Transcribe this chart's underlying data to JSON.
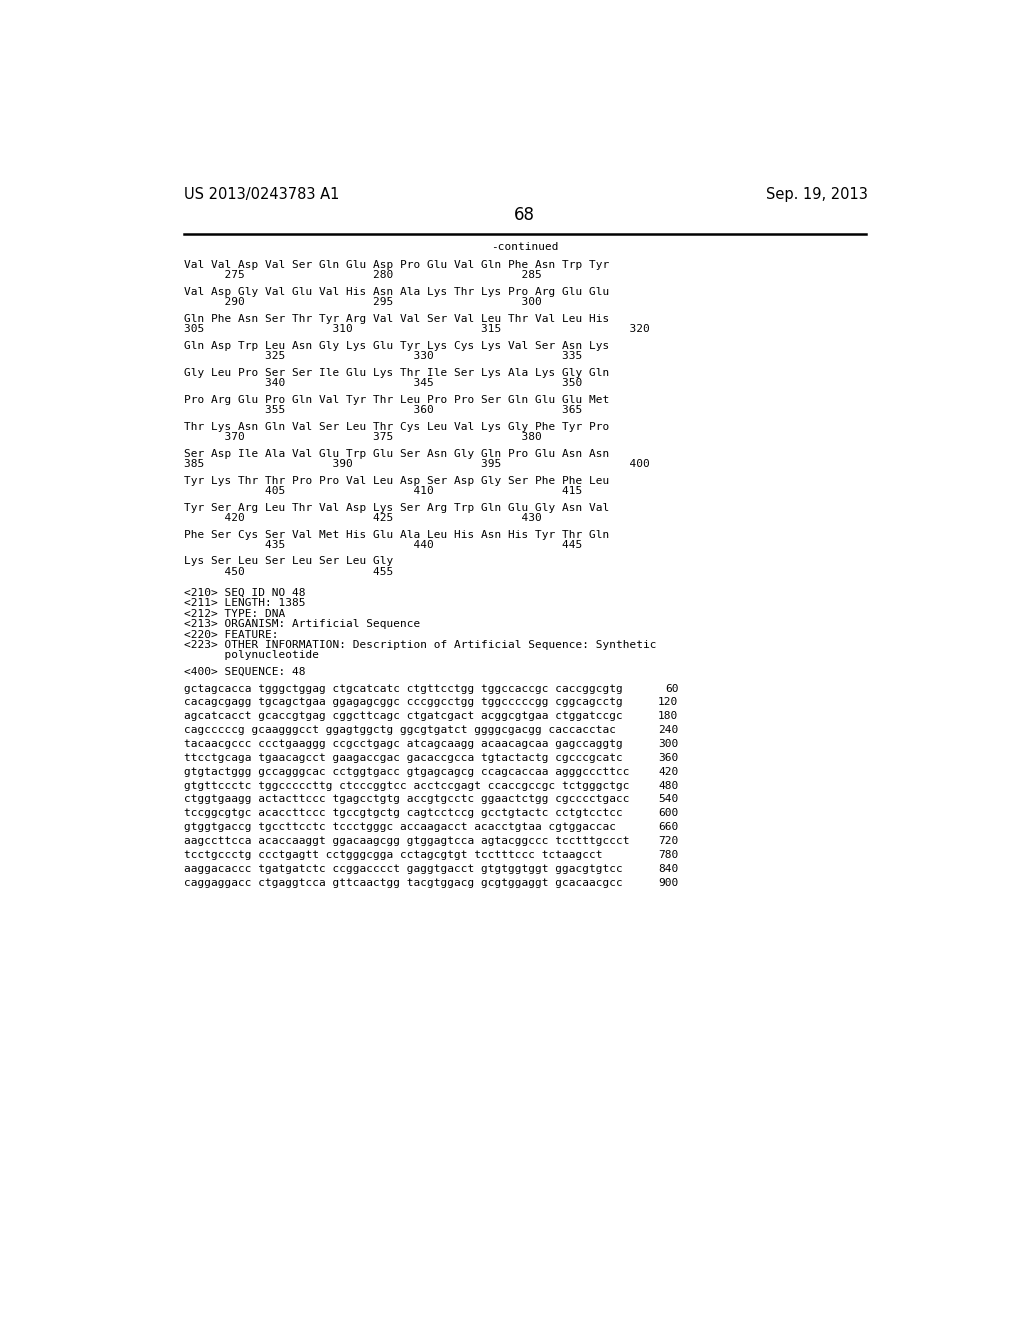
{
  "header_left": "US 2013/0243783 A1",
  "header_right": "Sep. 19, 2013",
  "page_number": "68",
  "continued_text": "-continued",
  "background_color": "#ffffff",
  "text_color": "#000000",
  "font_size_header": 10.5,
  "font_size_page": 12,
  "mono_fs": 8.0,
  "sequence_blocks": [
    [
      "Val Val Asp Val Ser Gln Glu Asp Pro Glu Val Gln Phe Asn Trp Tyr",
      "      275                   280                   285"
    ],
    [
      "Val Asp Gly Val Glu Val His Asn Ala Lys Thr Lys Pro Arg Glu Glu",
      "      290                   295                   300"
    ],
    [
      "Gln Phe Asn Ser Thr Tyr Arg Val Val Ser Val Leu Thr Val Leu His",
      "305                   310                   315                   320"
    ],
    [
      "Gln Asp Trp Leu Asn Gly Lys Glu Tyr Lys Cys Lys Val Ser Asn Lys",
      "            325                   330                   335"
    ],
    [
      "Gly Leu Pro Ser Ser Ile Glu Lys Thr Ile Ser Lys Ala Lys Gly Gln",
      "            340                   345                   350"
    ],
    [
      "Pro Arg Glu Pro Gln Val Tyr Thr Leu Pro Pro Ser Gln Glu Glu Met",
      "            355                   360                   365"
    ],
    [
      "Thr Lys Asn Gln Val Ser Leu Thr Cys Leu Val Lys Gly Phe Tyr Pro",
      "      370                   375                   380"
    ],
    [
      "Ser Asp Ile Ala Val Glu Trp Glu Ser Asn Gly Gln Pro Glu Asn Asn",
      "385                   390                   395                   400"
    ],
    [
      "Tyr Lys Thr Thr Pro Pro Val Leu Asp Ser Asp Gly Ser Phe Phe Leu",
      "            405                   410                   415"
    ],
    [
      "Tyr Ser Arg Leu Thr Val Asp Lys Ser Arg Trp Gln Glu Gly Asn Val",
      "      420                   425                   430"
    ],
    [
      "Phe Ser Cys Ser Val Met His Glu Ala Leu His Asn His Tyr Thr Gln",
      "            435                   440                   445"
    ],
    [
      "Lys Ser Leu Ser Leu Ser Leu Gly",
      "      450                   455"
    ]
  ],
  "metadata_lines": [
    "<210> SEQ ID NO 48",
    "<211> LENGTH: 1385",
    "<212> TYPE: DNA",
    "<213> ORGANISM: Artificial Sequence",
    "<220> FEATURE:",
    "<223> OTHER INFORMATION: Description of Artificial Sequence: Synthetic",
    "      polynucleotide"
  ],
  "sequence400_header": "<400> SEQUENCE: 48",
  "dna_lines": [
    [
      "gctagcacca tgggctggag ctgcatcatc ctgttcctgg tggccaccgc caccggcgtg",
      "60"
    ],
    [
      "cacagcgagg tgcagctgaa ggagagcggc cccggcctgg tggcccccgg cggcagcctg",
      "120"
    ],
    [
      "agcatcacct gcaccgtgag cggcttcagc ctgatcgact acggcgtgaa ctggatccgc",
      "180"
    ],
    [
      "cagcccccg gcaagggcct ggagtggctg ggcgtgatct ggggcgacgg caccacctac",
      "240"
    ],
    [
      "tacaacgccc ccctgaaggg ccgcctgagc atcagcaagg acaacagcaa gagccaggtg",
      "300"
    ],
    [
      "ttcctgcaga tgaacagcct gaagaccgac gacaccgcca tgtactactg cgcccgcatc",
      "360"
    ],
    [
      "gtgtactggg gccagggcac cctggtgacc gtgagcagcg ccagcaccaa agggcccttcc",
      "420"
    ],
    [
      "gtgttccctc tggcccccttg ctcccggtcc acctccgagt ccaccgccgc tctgggctgc",
      "480"
    ],
    [
      "ctggtgaagg actacttccc tgagcctgtg accgtgcctc ggaactctgg cgcccctgacc",
      "540"
    ],
    [
      "tccggcgtgc acaccttccc tgccgtgctg cagtcctccg gcctgtactc cctgtcctcc",
      "600"
    ],
    [
      "gtggtgaccg tgccttcctc tccctgggc accaagacct acacctgtaa cgtggaccac",
      "660"
    ],
    [
      "aagccttcca acaccaaggt ggacaagcgg gtggagtcca agtacggccc tcctttgccct",
      "720"
    ],
    [
      "tcctgccctg ccctgagtt cctgggcgga cctagcgtgt tcctttccc tctaagcct",
      "780"
    ],
    [
      "aaggacaccc tgatgatctc ccggacccct gaggtgacct gtgtggtggt ggacgtgtcc",
      "840"
    ],
    [
      "caggaggacc ctgaggtcca gttcaactgg tacgtggacg gcgtggaggt gcacaacgcc",
      "900"
    ]
  ]
}
